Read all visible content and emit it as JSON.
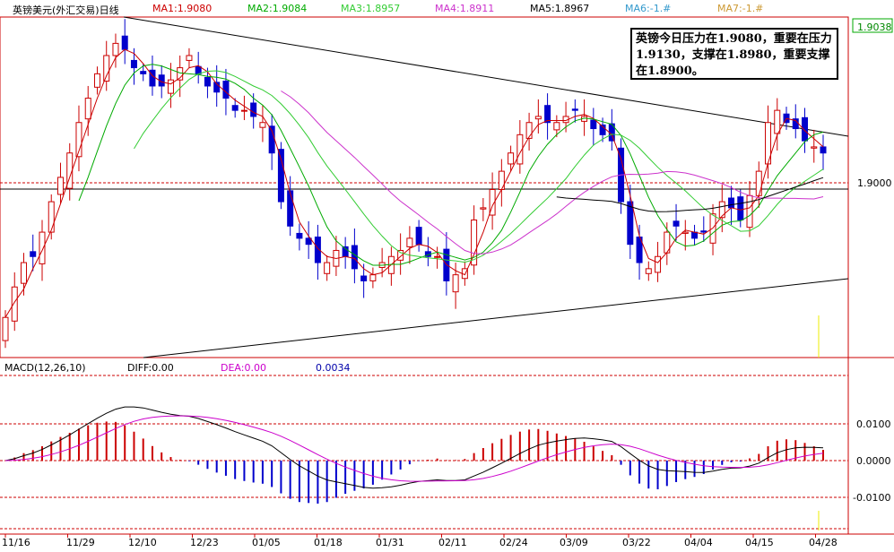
{
  "header": {
    "title": "英镑美元(外汇交易)日线",
    "ma_labels": [
      {
        "text": "MA1:1.9080",
        "color": "#cc0000"
      },
      {
        "text": "MA2:1.9084",
        "color": "#00aa00"
      },
      {
        "text": "MA3:1.8957",
        "color": "#33cc33"
      },
      {
        "text": "MA4:1.8911",
        "color": "#cc33cc"
      },
      {
        "text": "MA5:1.8967",
        "color": "#000000"
      },
      {
        "text": "MA6:-1.#",
        "color": "#3399cc"
      },
      {
        "text": "MA7:-1.#",
        "color": "#cc9933"
      }
    ]
  },
  "note": "英镑今日压力在1.9080，重要在压力1.9130，支撑在1.8980，重要支撑在1.8900。",
  "macd_header": {
    "title": "MACD(12,26,10)",
    "diff": "DIFF:0.00",
    "dea": "DEA:0.00",
    "macd": "0.0034"
  },
  "price_labels": {
    "top": "1.9038",
    "mid": "1.9000"
  },
  "macd_labels": [
    "0.0100",
    "0.0000",
    "-0.0100"
  ],
  "dates": [
    "11/16",
    "11/29",
    "12/10",
    "12/23",
    "01/05",
    "01/18",
    "01/31",
    "02/11",
    "02/24",
    "03/09",
    "03/22",
    "04/04",
    "04/15",
    "04/28"
  ],
  "colors": {
    "up": "#cc0000",
    "down": "#0000cc",
    "ma1": "#cc0000",
    "ma2": "#00aa00",
    "ma3": "#33cc33",
    "ma4": "#cc33cc",
    "ma5": "#000000",
    "macd_diff": "#000000",
    "macd_dea": "#cc00cc"
  },
  "chart_data": {
    "type": "candlestick",
    "closes": [
      1.878,
      1.883,
      1.887,
      1.888,
      1.892,
      1.897,
      1.901,
      1.905,
      1.91,
      1.914,
      1.918,
      1.921,
      1.923,
      1.922,
      1.919,
      1.918,
      1.916,
      1.916,
      1.917,
      1.919,
      1.921,
      1.918,
      1.916,
      1.915,
      1.914,
      1.912,
      1.912,
      1.911,
      1.91,
      1.905,
      1.897,
      1.893,
      1.891,
      1.89,
      1.887,
      1.887,
      1.889,
      1.888,
      1.886,
      1.884,
      1.885,
      1.887,
      1.888,
      1.889,
      1.891,
      1.89,
      1.888,
      1.888,
      1.884,
      1.885,
      1.886,
      1.894,
      1.896,
      1.899,
      1.902,
      1.905,
      1.908,
      1.91,
      1.911,
      1.91,
      1.91,
      1.911,
      1.912,
      1.911,
      1.909,
      1.908,
      1.907,
      1.897,
      1.89,
      1.887,
      1.886,
      1.888,
      1.892,
      1.893,
      1.892,
      1.891,
      1.892,
      1.895,
      1.897,
      1.896,
      1.894,
      1.898,
      1.902,
      1.91,
      1.912,
      1.91,
      1.909,
      1.907,
      1.906,
      1.905
    ],
    "ylim": [
      1.872,
      1.926
    ],
    "macd_ylim": [
      -0.019,
      0.023
    ]
  }
}
